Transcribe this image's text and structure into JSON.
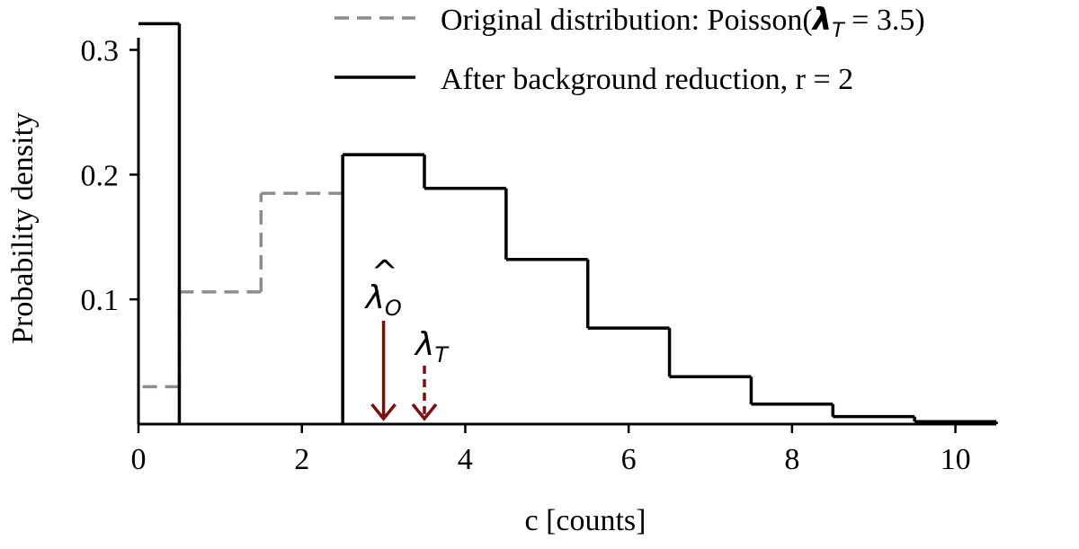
{
  "chart_data": {
    "type": "step",
    "xlabel": "c [counts]",
    "ylabel": "Probability density",
    "xlim": [
      0,
      10.5
    ],
    "ylim": [
      0,
      0.34
    ],
    "xticks": [
      0,
      2,
      4,
      6,
      8,
      10
    ],
    "yticks": [
      0.1,
      0.2,
      0.3
    ],
    "grid": false,
    "legend_position": "top-right",
    "series": [
      {
        "name": "Original distribution: Poisson(λ_T = 3.5)",
        "name_parts": {
          "prefix": "Original distribution: Poisson(",
          "symbol": "λ",
          "sub": "T",
          "suffix": " = 3.5)"
        },
        "style": "dashed",
        "color": "#8c8c8c",
        "x": [
          0,
          1,
          2
        ],
        "values": [
          0.03,
          0.106,
          0.185
        ]
      },
      {
        "name": "After background reduction, r = 2",
        "style": "solid",
        "color": "#000000",
        "x": [
          0,
          3,
          4,
          5,
          6,
          7,
          8,
          9,
          10
        ],
        "values": [
          0.321,
          0.216,
          0.189,
          0.132,
          0.077,
          0.038,
          0.016,
          0.006,
          0.002
        ]
      }
    ],
    "annotations": [
      {
        "label": "λ̂",
        "symbol": "λ",
        "sub": "O",
        "hat": true,
        "x": 3.0,
        "style": "solid",
        "color": "#7a1010"
      },
      {
        "label": "λ",
        "symbol": "λ",
        "sub": "T",
        "hat": false,
        "x": 3.5,
        "style": "dashed",
        "color": "#7a1010"
      }
    ]
  }
}
